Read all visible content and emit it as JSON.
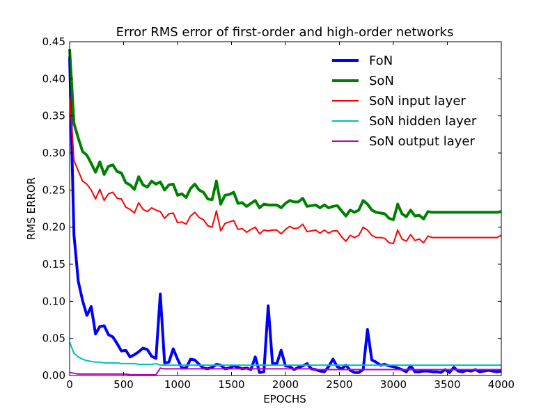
{
  "chart_data": {
    "type": "line",
    "title": "Error RMS error of first-order and high-order networks",
    "xlabel": "EPOCHS",
    "ylabel": "RMS ERROR",
    "xlim": [
      0,
      4000
    ],
    "ylim": [
      0,
      0.45
    ],
    "x_ticks": [
      0,
      500,
      1000,
      1500,
      2000,
      2500,
      3000,
      3500,
      4000
    ],
    "y_ticks": [
      0.0,
      0.05,
      0.1,
      0.15,
      0.2,
      0.25,
      0.3,
      0.35,
      0.4,
      0.45
    ],
    "x_tick_labels": [
      "0",
      "500",
      "1000",
      "1500",
      "2000",
      "2500",
      "3000",
      "3500",
      "4000"
    ],
    "y_tick_labels": [
      "0.00",
      "0.05",
      "0.10",
      "0.15",
      "0.20",
      "0.25",
      "0.30",
      "0.35",
      "0.40",
      "0.45"
    ],
    "grid": false,
    "legend_position": "top-right",
    "x": [
      0,
      40,
      80,
      120,
      160,
      200,
      240,
      280,
      320,
      360,
      400,
      440,
      480,
      520,
      560,
      600,
      640,
      680,
      720,
      760,
      800,
      840,
      880,
      920,
      960,
      1000,
      1040,
      1080,
      1120,
      1160,
      1200,
      1240,
      1280,
      1320,
      1360,
      1400,
      1440,
      1480,
      1520,
      1560,
      1600,
      1640,
      1680,
      1720,
      1760,
      1800,
      1840,
      1880,
      1920,
      1960,
      2000,
      2040,
      2080,
      2120,
      2160,
      2200,
      2240,
      2280,
      2320,
      2360,
      2400,
      2440,
      2480,
      2520,
      2560,
      2600,
      2640,
      2680,
      2720,
      2760,
      2800,
      2840,
      2880,
      2920,
      2960,
      3000,
      3040,
      3080,
      3120,
      3160,
      3200,
      3240,
      3280,
      3320,
      3360,
      3400,
      3440,
      3480,
      3520,
      3560,
      3600,
      3640,
      3680,
      3720,
      3760,
      3800,
      3840,
      3880,
      3920,
      3960,
      4000
    ],
    "series": [
      {
        "name": "FoN",
        "color": "#0000ff",
        "width": 4,
        "values": [
          0.43,
          0.19,
          0.127,
          0.101,
          0.081,
          0.093,
          0.056,
          0.066,
          0.067,
          0.055,
          0.052,
          0.043,
          0.033,
          0.034,
          0.025,
          0.028,
          0.032,
          0.037,
          0.035,
          0.026,
          0.023,
          0.11,
          0.017,
          0.018,
          0.036,
          0.022,
          0.01,
          0.01,
          0.022,
          0.021,
          0.015,
          0.01,
          0.009,
          0.011,
          0.015,
          0.014,
          0.009,
          0.01,
          0.013,
          0.011,
          0.009,
          0.01,
          0.008,
          0.025,
          0.004,
          0.005,
          0.094,
          0.016,
          0.016,
          0.034,
          0.013,
          0.012,
          0.008,
          0.011,
          0.013,
          0.016,
          0.009,
          0.008,
          0.006,
          0.005,
          0.012,
          0.022,
          0.012,
          0.009,
          0.014,
          0.007,
          0.004,
          0.004,
          0.008,
          0.062,
          0.021,
          0.018,
          0.014,
          0.015,
          0.013,
          0.012,
          0.01,
          0.008,
          0.005,
          0.013,
          0.005,
          0.005,
          0.006,
          0.006,
          0.005,
          0.005,
          0.004,
          0.008,
          0.004,
          0.011,
          0.006,
          0.005,
          0.007,
          0.006,
          0.008,
          0.005,
          0.006,
          0.007,
          0.006,
          0.005,
          0.006
        ]
      },
      {
        "name": "SoN",
        "color": "#008000",
        "width": 4,
        "values": [
          0.44,
          0.34,
          0.32,
          0.302,
          0.297,
          0.286,
          0.274,
          0.288,
          0.271,
          0.282,
          0.284,
          0.275,
          0.273,
          0.26,
          0.257,
          0.251,
          0.268,
          0.257,
          0.254,
          0.262,
          0.258,
          0.261,
          0.25,
          0.257,
          0.258,
          0.243,
          0.245,
          0.24,
          0.252,
          0.258,
          0.25,
          0.247,
          0.238,
          0.237,
          0.262,
          0.231,
          0.243,
          0.244,
          0.247,
          0.232,
          0.233,
          0.228,
          0.232,
          0.236,
          0.226,
          0.231,
          0.23,
          0.23,
          0.23,
          0.226,
          0.232,
          0.236,
          0.234,
          0.234,
          0.239,
          0.228,
          0.229,
          0.23,
          0.226,
          0.23,
          0.226,
          0.228,
          0.229,
          0.222,
          0.215,
          0.223,
          0.22,
          0.223,
          0.236,
          0.231,
          0.223,
          0.22,
          0.219,
          0.218,
          0.212,
          0.21,
          0.231,
          0.218,
          0.214,
          0.223,
          0.215,
          0.216,
          0.211,
          0.221,
          0.22,
          0.22,
          0.22,
          0.22,
          0.22,
          0.22,
          0.22,
          0.22,
          0.22,
          0.22,
          0.22,
          0.22,
          0.22,
          0.22,
          0.22,
          0.22,
          0.221
        ]
      },
      {
        "name": "SoN input layer",
        "color": "#ff0000",
        "width": 2,
        "values": [
          0.38,
          0.29,
          0.276,
          0.262,
          0.258,
          0.25,
          0.238,
          0.251,
          0.236,
          0.245,
          0.247,
          0.239,
          0.238,
          0.227,
          0.224,
          0.219,
          0.233,
          0.224,
          0.221,
          0.226,
          0.223,
          0.221,
          0.212,
          0.218,
          0.219,
          0.206,
          0.207,
          0.204,
          0.215,
          0.22,
          0.213,
          0.21,
          0.202,
          0.2,
          0.222,
          0.195,
          0.205,
          0.207,
          0.209,
          0.197,
          0.198,
          0.193,
          0.197,
          0.2,
          0.191,
          0.196,
          0.195,
          0.196,
          0.196,
          0.191,
          0.197,
          0.201,
          0.198,
          0.199,
          0.204,
          0.194,
          0.195,
          0.196,
          0.192,
          0.196,
          0.192,
          0.195,
          0.195,
          0.187,
          0.181,
          0.189,
          0.186,
          0.189,
          0.2,
          0.196,
          0.189,
          0.186,
          0.186,
          0.185,
          0.179,
          0.178,
          0.196,
          0.184,
          0.181,
          0.19,
          0.182,
          0.184,
          0.179,
          0.188,
          0.186,
          0.186,
          0.186,
          0.186,
          0.186,
          0.186,
          0.186,
          0.186,
          0.186,
          0.186,
          0.186,
          0.186,
          0.186,
          0.186,
          0.186,
          0.186,
          0.189
        ]
      },
      {
        "name": "SoN hidden layer",
        "color": "#00bfbf",
        "width": 2,
        "values": [
          0.045,
          0.03,
          0.025,
          0.022,
          0.02,
          0.019,
          0.018,
          0.018,
          0.017,
          0.017,
          0.017,
          0.017,
          0.016,
          0.016,
          0.016,
          0.016,
          0.015,
          0.015,
          0.015,
          0.015,
          0.016,
          0.014,
          0.014,
          0.014,
          0.014,
          0.014,
          0.014,
          0.014,
          0.014,
          0.014,
          0.014,
          0.014,
          0.014,
          0.014,
          0.014,
          0.014,
          0.014,
          0.014,
          0.014,
          0.014,
          0.014,
          0.014,
          0.014,
          0.014,
          0.014,
          0.014,
          0.014,
          0.014,
          0.014,
          0.014,
          0.014,
          0.014,
          0.014,
          0.014,
          0.014,
          0.014,
          0.014,
          0.014,
          0.014,
          0.014,
          0.014,
          0.014,
          0.014,
          0.014,
          0.014,
          0.014,
          0.014,
          0.014,
          0.014,
          0.014,
          0.014,
          0.014,
          0.014,
          0.014,
          0.014,
          0.014,
          0.014,
          0.014,
          0.014,
          0.014,
          0.014,
          0.014,
          0.014,
          0.014,
          0.014,
          0.014,
          0.014,
          0.014,
          0.014,
          0.014,
          0.014,
          0.014,
          0.014,
          0.014,
          0.014,
          0.014,
          0.014,
          0.014,
          0.014,
          0.014,
          0.014
        ]
      },
      {
        "name": "SoN output layer",
        "color": "#bf00bf",
        "width": 2,
        "values": [
          0.004,
          0.003,
          0.002,
          0.002,
          0.002,
          0.002,
          0.002,
          0.002,
          0.002,
          0.002,
          0.002,
          0.002,
          0.002,
          0.002,
          0.001,
          0.001,
          0.001,
          0.001,
          0.001,
          0.001,
          0.001,
          0.01,
          0.009,
          0.009,
          0.009,
          0.009,
          0.009,
          0.009,
          0.009,
          0.009,
          0.009,
          0.009,
          0.009,
          0.009,
          0.009,
          0.009,
          0.009,
          0.009,
          0.009,
          0.009,
          0.009,
          0.009,
          0.009,
          0.009,
          0.009,
          0.009,
          0.009,
          0.009,
          0.009,
          0.009,
          0.009,
          0.009,
          0.009,
          0.009,
          0.009,
          0.009,
          0.009,
          0.008,
          0.008,
          0.008,
          0.008,
          0.008,
          0.008,
          0.008,
          0.008,
          0.008,
          0.008,
          0.008,
          0.008,
          0.008,
          0.008,
          0.008,
          0.008,
          0.008,
          0.008,
          0.008,
          0.008,
          0.008,
          0.008,
          0.008,
          0.008,
          0.008,
          0.008,
          0.008,
          0.008,
          0.008,
          0.008,
          0.008,
          0.008,
          0.008,
          0.008,
          0.008,
          0.008,
          0.008,
          0.008,
          0.008,
          0.008,
          0.008,
          0.008,
          0.008,
          0.008
        ]
      }
    ]
  }
}
